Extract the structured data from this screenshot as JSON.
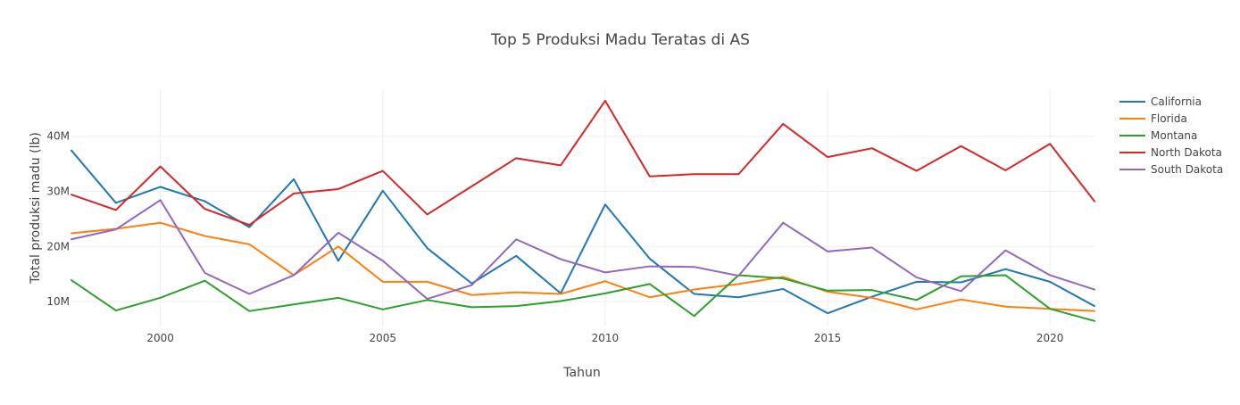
{
  "chart_data": {
    "type": "line",
    "title": "Top 5 Produksi Madu Teratas di AS",
    "xlabel": "Tahun",
    "ylabel": "Total produksi madu (lb)",
    "xlim": [
      1998,
      2021
    ],
    "ylim": [
      5500000,
      48500000
    ],
    "x_ticks": [
      2000,
      2005,
      2010,
      2015,
      2020
    ],
    "y_ticks": [
      10000000,
      20000000,
      30000000,
      40000000
    ],
    "y_tick_labels": [
      "10M",
      "20M",
      "30M",
      "40M"
    ],
    "grid": true,
    "legend_position": "top-right",
    "x": [
      1998,
      1999,
      2000,
      2001,
      2002,
      2003,
      2004,
      2005,
      2006,
      2007,
      2008,
      2009,
      2010,
      2011,
      2012,
      2013,
      2014,
      2015,
      2016,
      2017,
      2018,
      2019,
      2020,
      2021
    ],
    "series": [
      {
        "name": "California",
        "color": "#1f77b4",
        "values": [
          37400000,
          27900000,
          30800000,
          28200000,
          23500000,
          32200000,
          17400000,
          30100000,
          19700000,
          13300000,
          18300000,
          11500000,
          27600000,
          17800000,
          11400000,
          10800000,
          12300000,
          7900000,
          10900000,
          13600000,
          13500000,
          15900000,
          13600000,
          9200000
        ]
      },
      {
        "name": "Florida",
        "color": "#ff7f0e",
        "values": [
          22400000,
          23200000,
          24300000,
          21900000,
          20400000,
          14800000,
          20000000,
          13600000,
          13600000,
          11200000,
          11700000,
          11400000,
          13700000,
          10800000,
          12200000,
          13200000,
          14500000,
          11800000,
          10700000,
          8600000,
          10400000,
          9100000,
          8700000,
          8300000
        ]
      },
      {
        "name": "Montana",
        "color": "#2ca02c",
        "values": [
          13900000,
          8400000,
          10700000,
          13800000,
          8300000,
          9500000,
          10700000,
          8600000,
          10300000,
          9000000,
          9200000,
          10100000,
          11500000,
          13200000,
          7400000,
          14800000,
          14200000,
          12000000,
          12100000,
          10300000,
          14600000,
          14800000,
          8700000,
          6500000
        ]
      },
      {
        "name": "North Dakota",
        "color": "#d62728",
        "values": [
          29400000,
          26600000,
          34500000,
          26800000,
          23900000,
          29600000,
          30400000,
          33700000,
          25800000,
          30900000,
          36000000,
          34700000,
          46400000,
          32700000,
          33100000,
          33100000,
          42200000,
          36200000,
          37800000,
          33700000,
          38200000,
          33800000,
          38600000,
          28200000
        ]
      },
      {
        "name": "South Dakota",
        "color": "#9467bd",
        "values": [
          21300000,
          23100000,
          28400000,
          15200000,
          11400000,
          14800000,
          22500000,
          17400000,
          10500000,
          13000000,
          21300000,
          17700000,
          15300000,
          16400000,
          16300000,
          14700000,
          24300000,
          19100000,
          19800000,
          14400000,
          11900000,
          19300000,
          14800000,
          12200000
        ]
      }
    ]
  }
}
